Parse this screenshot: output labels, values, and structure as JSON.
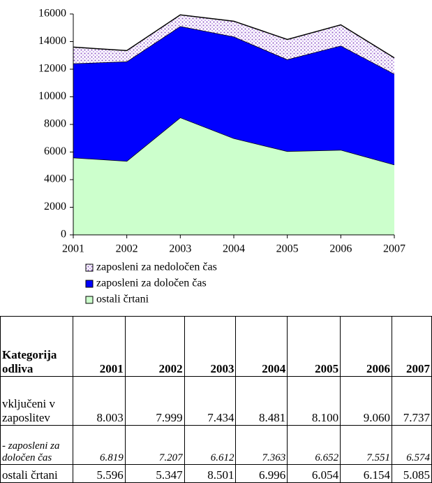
{
  "chart_data": {
    "type": "area",
    "stacked": true,
    "x": [
      2001,
      2002,
      2003,
      2004,
      2005,
      2006,
      2007
    ],
    "xlim": [
      2001,
      2007
    ],
    "xticks": [
      2001,
      2002,
      2003,
      2004,
      2005,
      2006,
      2007
    ],
    "ylim": [
      0,
      16000
    ],
    "yticks": [
      0,
      2000,
      4000,
      6000,
      8000,
      10000,
      12000,
      14000,
      16000
    ],
    "series": [
      {
        "name": "zaposleni za nedoločen čas",
        "color": "#9966cc",
        "pattern": "dots",
        "values": [
          1184,
          792,
          822,
          1118,
          1448,
          1509,
          1163
        ]
      },
      {
        "name": "zaposleni za določen čas",
        "color": "#0000ff",
        "values": [
          6819,
          7207,
          6612,
          7363,
          6652,
          7551,
          6574
        ]
      },
      {
        "name": "ostali črtani",
        "color": "#ccffcc",
        "values": [
          5596,
          5347,
          8501,
          6996,
          6054,
          6154,
          5085
        ]
      }
    ]
  },
  "table": {
    "header": [
      "Kategorija odliva",
      "2001",
      "2002",
      "2003",
      "2004",
      "2005",
      "2006",
      "2007"
    ],
    "rows": [
      [
        "vključeni v zaposlitev",
        "8.003",
        "7.999",
        "7.434",
        "8.481",
        "8.100",
        "9.060",
        "7.737"
      ],
      [
        "- zaposleni za določen čas",
        "6.819",
        "7.207",
        "6.612",
        "7.363",
        "6.652",
        "7.551",
        "6.574"
      ],
      [
        "ostali črtani",
        "5.596",
        "5.347",
        "8.501",
        "6.996",
        "6.054",
        "6.154",
        "5.085"
      ]
    ]
  }
}
